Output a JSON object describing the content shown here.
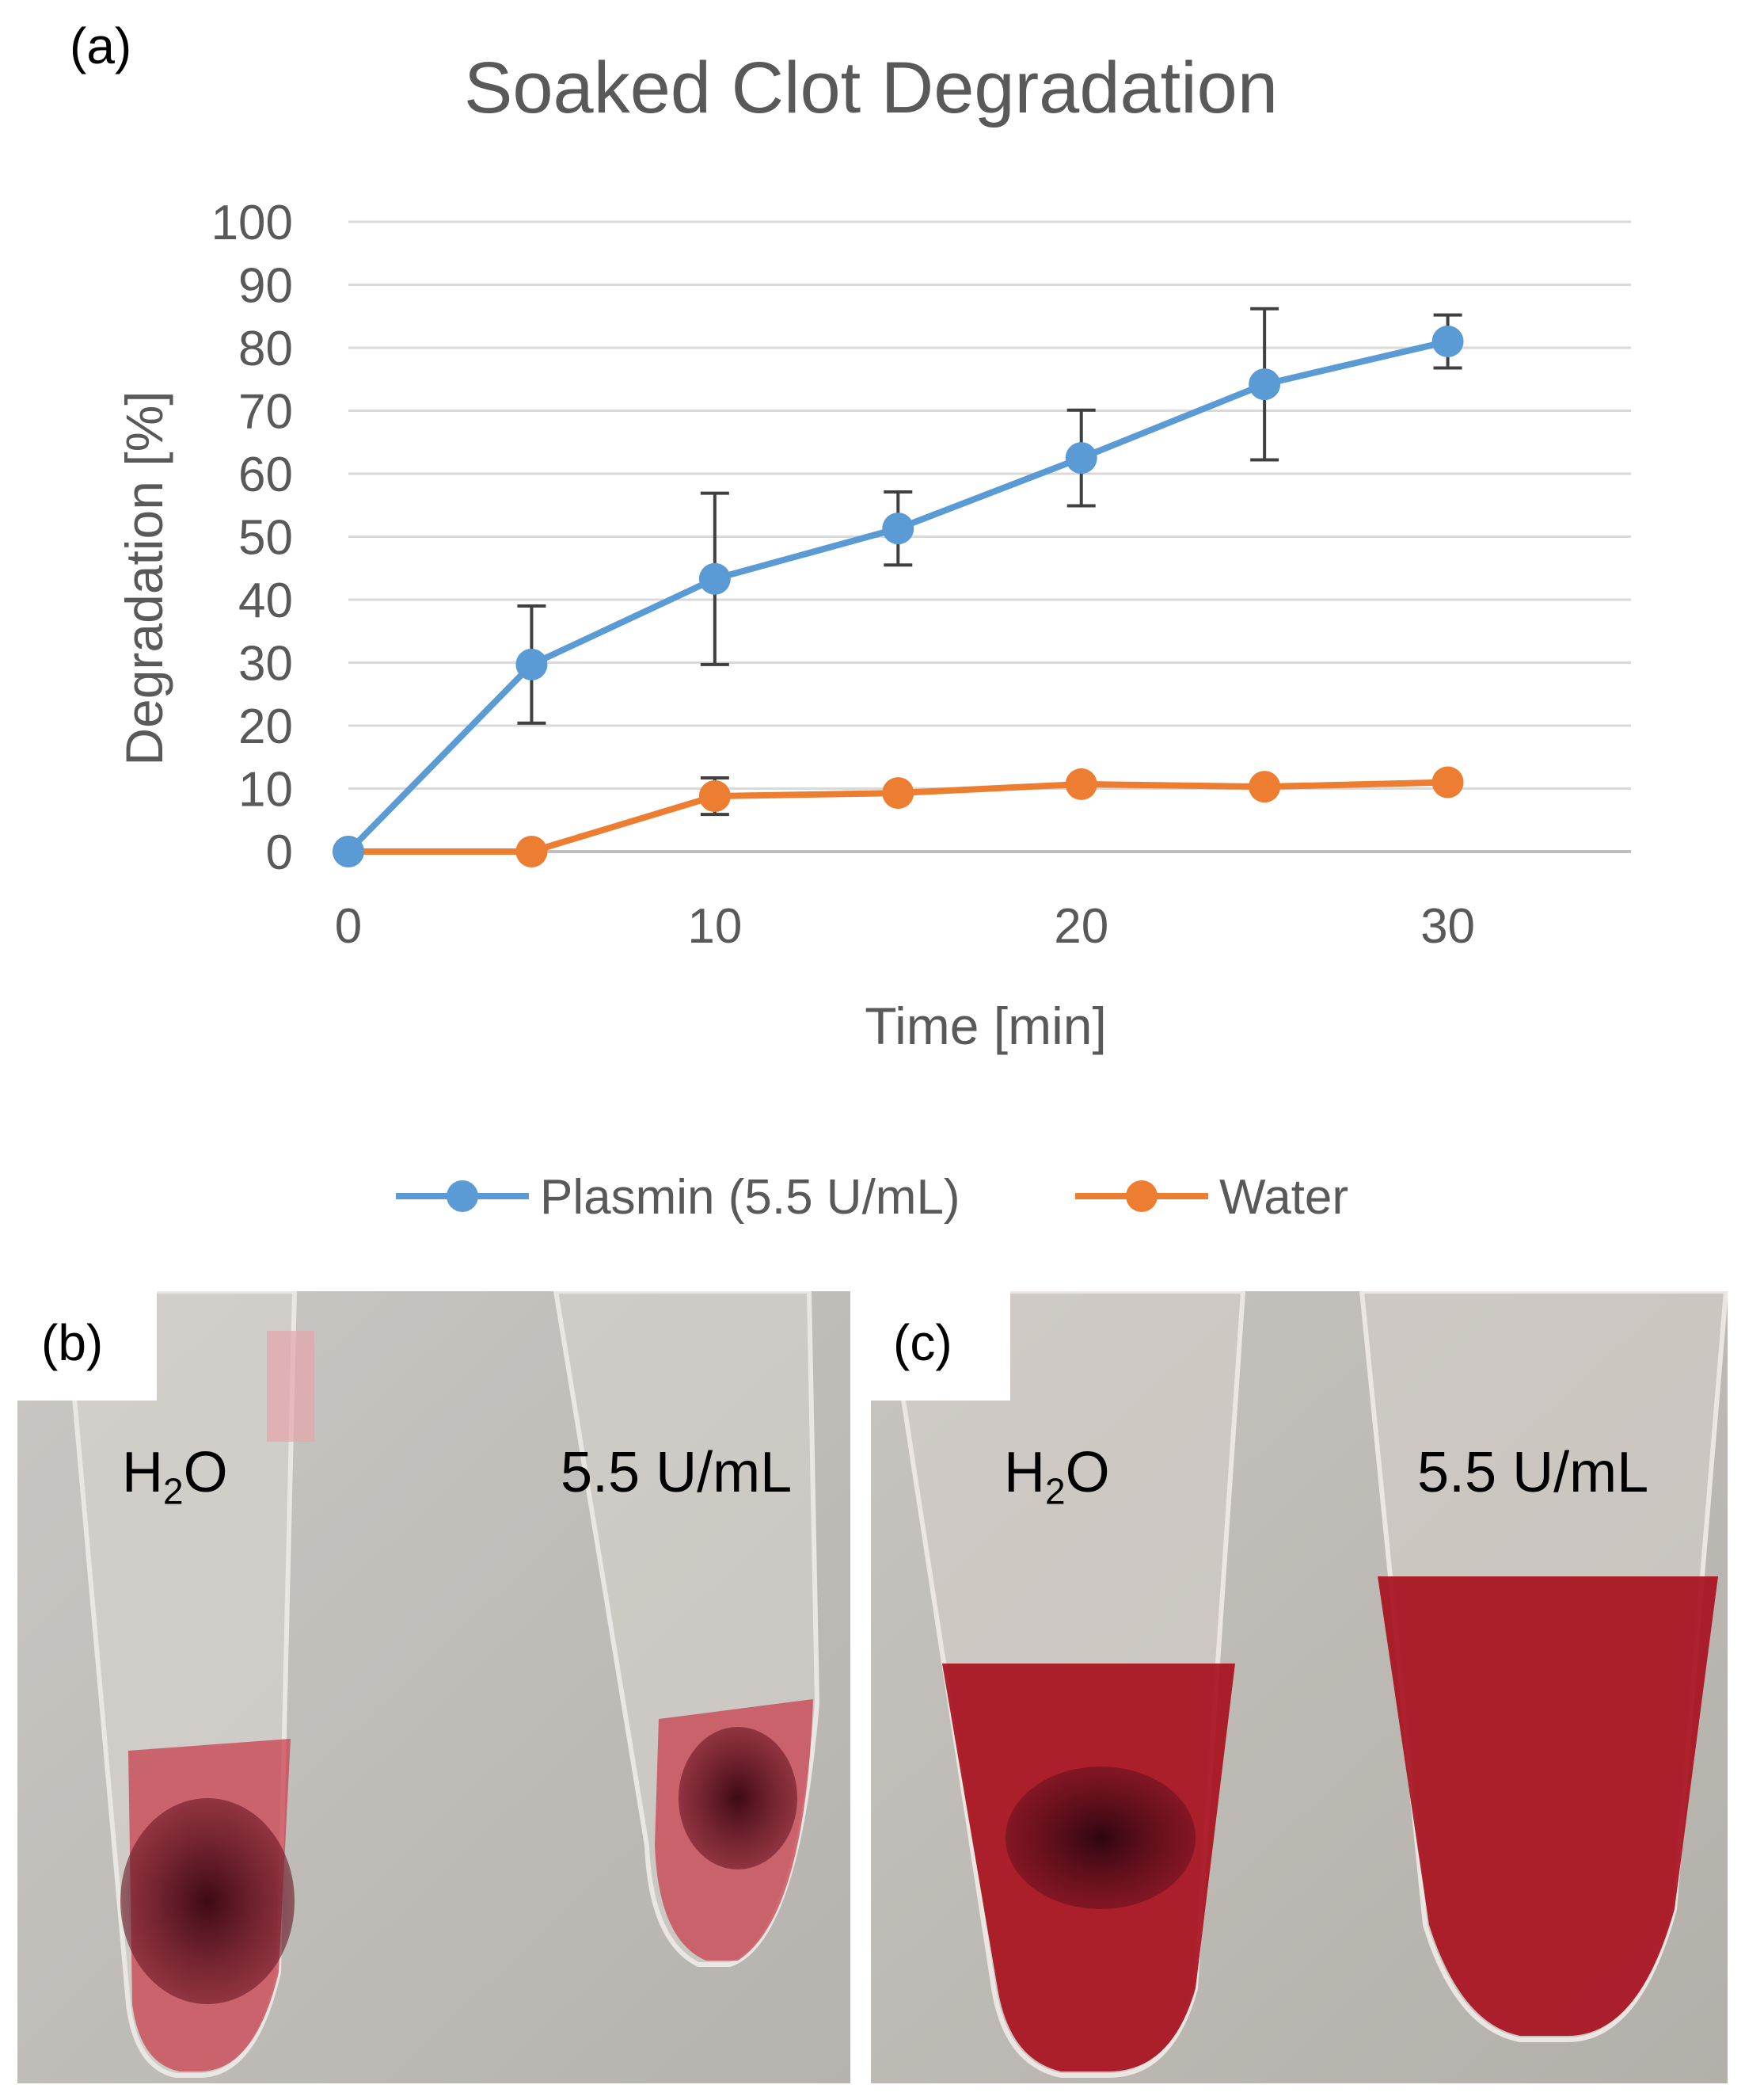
{
  "panel_labels": {
    "a": "(a)",
    "b": "(b)",
    "c": "(c)"
  },
  "chart_data": {
    "type": "line",
    "title": "Soaked Clot Degradation",
    "xlabel": "Time [min]",
    "ylabel": "Degradation [%]",
    "xlim": [
      0,
      35
    ],
    "ylim": [
      0,
      100
    ],
    "xticks": [
      0,
      10,
      20,
      30
    ],
    "yticks": [
      0,
      10,
      20,
      30,
      40,
      50,
      60,
      70,
      80,
      90,
      100
    ],
    "grid": "horizontal",
    "legend_position": "bottom",
    "x": [
      0,
      5,
      10,
      15,
      20,
      25,
      30
    ],
    "series": [
      {
        "name": "Plasmin (5.5 U/mL)",
        "color": "#5b9bd5",
        "values": [
          0,
          29.7,
          43.3,
          51.3,
          62.5,
          74.2,
          81.0
        ],
        "error": [
          0,
          9.3,
          13.6,
          5.8,
          7.6,
          12.0,
          4.2
        ]
      },
      {
        "name": "Water",
        "color": "#ed7d31",
        "values": [
          0,
          0,
          8.8,
          9.3,
          10.7,
          10.3,
          11.0
        ],
        "error": [
          0,
          0,
          2.9,
          0,
          0,
          0,
          0
        ]
      }
    ]
  },
  "photos": {
    "b": {
      "left_label_main": "H",
      "left_label_sub": "2",
      "left_label_end": "O",
      "right_label": "5.5 U/mL"
    },
    "c": {
      "left_label_main": "H",
      "left_label_sub": "2",
      "left_label_end": "O",
      "right_label": "5.5 U/mL"
    }
  }
}
